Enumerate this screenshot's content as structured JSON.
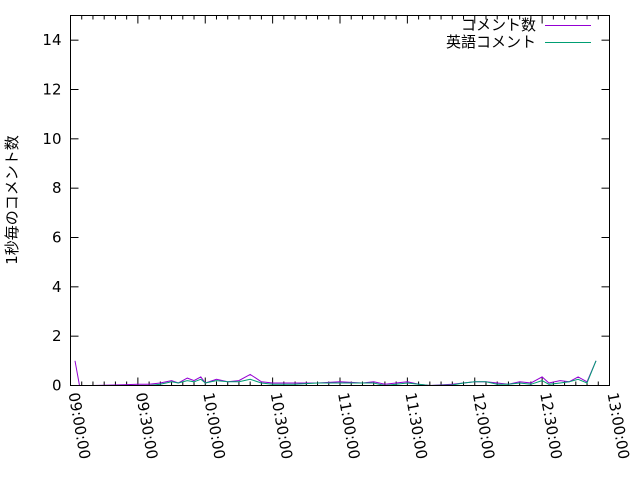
{
  "chart_data": {
    "type": "line",
    "ylabel": "1秒毎のコメント数",
    "xlabel": "",
    "ylim": [
      0,
      15
    ],
    "yticks": [
      0,
      2,
      4,
      6,
      8,
      10,
      12,
      14
    ],
    "xlim": [
      "09:00:00",
      "13:00:00"
    ],
    "xticks": [
      "09:00:00",
      "09:30:00",
      "10:00:00",
      "10:30:00",
      "11:00:00",
      "11:30:00",
      "12:00:00",
      "12:30:00",
      "13:00:00"
    ],
    "grid": false,
    "legend_position": "top-right",
    "x": [
      "09:02",
      "09:04",
      "09:10",
      "09:30",
      "09:35",
      "09:40",
      "09:45",
      "09:48",
      "09:52",
      "09:55",
      "09:58",
      "10:00",
      "10:05",
      "10:10",
      "10:15",
      "10:20",
      "10:25",
      "10:30",
      "10:40",
      "10:50",
      "11:00",
      "11:10",
      "11:15",
      "11:20",
      "11:25",
      "11:30",
      "11:35",
      "11:40",
      "11:50",
      "11:55",
      "12:00",
      "12:05",
      "12:10",
      "12:15",
      "12:20",
      "12:25",
      "12:30",
      "12:33",
      "12:38",
      "12:42",
      "12:46",
      "12:50",
      "12:54"
    ],
    "series": [
      {
        "name": "コメント数",
        "color": "#9400d3",
        "values": [
          1,
          0,
          0,
          0.05,
          0.05,
          0.1,
          0.2,
          0.1,
          0.3,
          0.2,
          0.35,
          0.1,
          0.25,
          0.15,
          0.2,
          0.45,
          0.15,
          0.1,
          0.1,
          0.1,
          0.15,
          0.1,
          0.15,
          0.05,
          0.1,
          0.15,
          0.05,
          0,
          0.05,
          0.1,
          0.15,
          0.15,
          0.1,
          0.05,
          0.15,
          0.1,
          0.35,
          0.1,
          0.2,
          0.15,
          0.35,
          0.15,
          1
        ]
      },
      {
        "name": "英語コメント",
        "color": "#009e73",
        "values": [
          null,
          0,
          0,
          0,
          0,
          0.05,
          0.15,
          0.1,
          0.2,
          0.15,
          0.25,
          0.1,
          0.2,
          0.15,
          0.15,
          0.25,
          0.1,
          0.05,
          0.05,
          0.1,
          0.1,
          0.1,
          0.1,
          0,
          0.05,
          0.1,
          0.05,
          0,
          0.02,
          0.1,
          0.15,
          0.15,
          0.05,
          0.05,
          0.1,
          0.05,
          0.2,
          0.05,
          0.1,
          0.15,
          0.25,
          0.1,
          1
        ]
      }
    ]
  }
}
